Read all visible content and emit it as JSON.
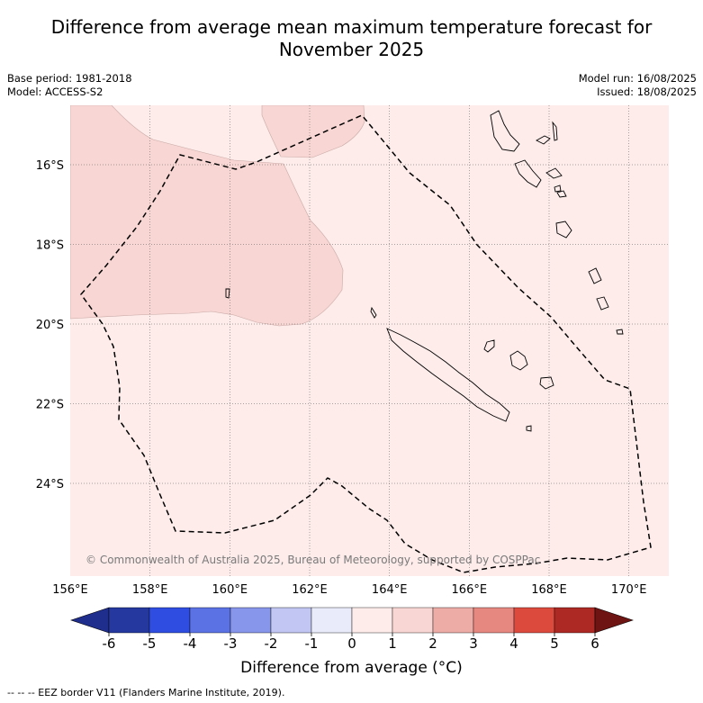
{
  "title": "Difference from average mean maximum temperature forecast for November 2025",
  "meta": {
    "base_period": "Base period: 1981-2018",
    "model": "Model: ACCESS-S2",
    "model_run": "Model run: 16/08/2025",
    "issued": "Issued: 18/08/2025"
  },
  "map": {
    "longitude_labels": [
      "156°E",
      "158°E",
      "160°E",
      "162°E",
      "164°E",
      "166°E",
      "168°E",
      "170°E"
    ],
    "latitude_labels": [
      "16°S",
      "18°S",
      "20°S",
      "22°S",
      "24°S"
    ],
    "copyright": "© Commonwealth of Australia 2025, Bureau of Meteorology, supported by COSPPac",
    "colors": {
      "background": "#fdecea",
      "anomaly_0_to_1": "#fdecea",
      "anomaly_1_to_2": "#f7d6d3",
      "coast": "#000000",
      "eez": "#000000",
      "grid": "#555555"
    }
  },
  "colorbar": {
    "ticks": [
      "-6",
      "-5",
      "-4",
      "-3",
      "-2",
      "-1",
      "0",
      "1",
      "2",
      "3",
      "4",
      "5",
      "6"
    ],
    "colors": [
      "#1f2e8c",
      "#24389f",
      "#2f4de0",
      "#5a72e4",
      "#8795ea",
      "#c1c7f2",
      "#e9ebfa",
      "#fdecea",
      "#f7d6d3",
      "#eeaca7",
      "#e68780",
      "#dc4a3e",
      "#ad2924",
      "#6e1513"
    ],
    "label": "Difference from average (°C)"
  },
  "footer": "--  --  -- EEZ border V11 (Flanders Marine Institute, 2019)."
}
